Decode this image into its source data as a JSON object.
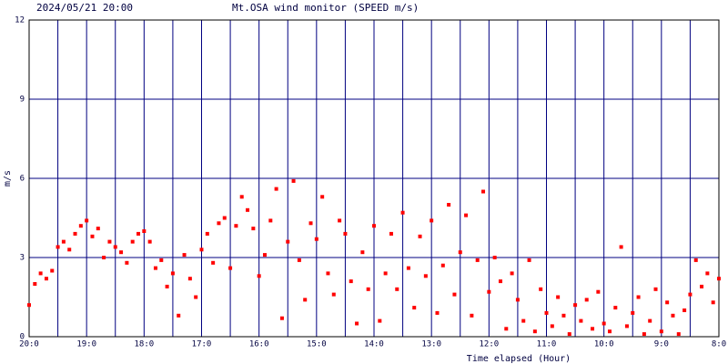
{
  "chart_data": {
    "type": "scatter",
    "title": "Mt.OSA wind monitor (SPEED m/s)",
    "subtitle": "2024/05/21 20:00",
    "y_label": "m/s",
    "x_label": "Time elapsed (Hour)",
    "color": "#ff0000",
    "grid_color": "#000080",
    "grid": true,
    "x": [
      0,
      0.1,
      0.2,
      0.3,
      0.4,
      0.5,
      0.6,
      0.7,
      0.8,
      0.9,
      1,
      1.1,
      1.2,
      1.3,
      1.4,
      1.5,
      1.6,
      1.7,
      1.8,
      1.9,
      2,
      2.1,
      2.2,
      2.3,
      2.4,
      2.5,
      2.6,
      2.7,
      2.8,
      2.9,
      3,
      3.1,
      3.2,
      3.3,
      3.4,
      3.5,
      3.6,
      3.7,
      3.8,
      3.9,
      4,
      4.1,
      4.2,
      4.3,
      4.4,
      4.5,
      4.6,
      4.7,
      4.8,
      4.9,
      5,
      5.1,
      5.2,
      5.3,
      5.4,
      5.5,
      5.6,
      5.7,
      5.8,
      5.9,
      6,
      6.1,
      6.2,
      6.3,
      6.4,
      6.5,
      6.6,
      6.7,
      6.8,
      6.9,
      7,
      7.1,
      7.2,
      7.3,
      7.4,
      7.5,
      7.6,
      7.7,
      7.8,
      7.9,
      8,
      8.1,
      8.2,
      8.3,
      8.4,
      8.5,
      8.6,
      8.7,
      8.8,
      8.9,
      9,
      9.1,
      9.2,
      9.3,
      9.4,
      9.5,
      9.6,
      9.7,
      9.8,
      9.9,
      10,
      10.1,
      10.2,
      10.3,
      10.4,
      10.5,
      10.6,
      10.7,
      10.8,
      10.9,
      11,
      11.1,
      11.2,
      11.3,
      11.4,
      11.5,
      11.6,
      11.7,
      11.8,
      11.9,
      12
    ],
    "values": [
      1.2,
      2.0,
      2.4,
      2.2,
      2.5,
      3.4,
      3.6,
      3.3,
      3.9,
      4.2,
      4.4,
      3.8,
      4.1,
      3.0,
      3.6,
      3.4,
      3.2,
      2.8,
      3.6,
      3.9,
      4.0,
      3.6,
      2.6,
      2.9,
      1.9,
      2.4,
      0.8,
      3.1,
      2.2,
      1.5,
      3.3,
      3.9,
      2.8,
      4.3,
      4.5,
      2.6,
      4.2,
      5.3,
      4.8,
      4.1,
      2.3,
      3.1,
      4.4,
      5.6,
      0.7,
      3.6,
      5.9,
      2.9,
      1.4,
      4.3,
      3.7,
      5.3,
      2.4,
      1.6,
      4.4,
      3.9,
      2.1,
      0.5,
      3.2,
      1.8,
      4.2,
      0.6,
      2.4,
      3.9,
      1.8,
      4.7,
      2.6,
      1.1,
      3.8,
      2.3,
      4.4,
      0.9,
      2.7,
      5.0,
      1.6,
      3.2,
      4.6,
      0.8,
      2.9,
      5.5,
      1.7,
      3.0,
      2.1,
      0.3,
      2.4,
      1.4,
      0.6,
      2.9,
      0.2,
      1.8,
      0.9,
      0.4,
      1.5,
      0.8,
      0.1,
      1.2,
      0.6,
      1.4,
      0.3,
      1.7,
      0.5,
      0.2,
      1.1,
      3.4,
      0.4,
      0.9,
      1.5,
      0.1,
      0.6,
      1.8,
      0.2,
      1.3,
      0.8,
      0.1,
      1.0,
      1.6,
      2.9,
      1.9,
      2.4,
      1.3,
      2.2
    ],
    "xlim": [
      0,
      12
    ],
    "xticks": [
      {
        "value": 0,
        "label": "20:0"
      },
      {
        "value": 1,
        "label": "19:0"
      },
      {
        "value": 2,
        "label": "18:0"
      },
      {
        "value": 3,
        "label": "17:0"
      },
      {
        "value": 4,
        "label": "16:0"
      },
      {
        "value": 5,
        "label": "15:0"
      },
      {
        "value": 6,
        "label": "14:0"
      },
      {
        "value": 7,
        "label": "13:0"
      },
      {
        "value": 8,
        "label": "12:0"
      },
      {
        "value": 9,
        "label": "11:0"
      },
      {
        "value": 10,
        "label": "10:0"
      },
      {
        "value": 11,
        "label": "9:0"
      },
      {
        "value": 12,
        "label": "8:0"
      }
    ],
    "minor_xticks": [
      0.5,
      1.5,
      2.5,
      3.5,
      4.5,
      5.5,
      6.5,
      7.5,
      8.5,
      9.5,
      10.5,
      11.5
    ],
    "ylim": [
      0,
      12
    ],
    "yticks": [
      0,
      3,
      6,
      9,
      12
    ]
  }
}
